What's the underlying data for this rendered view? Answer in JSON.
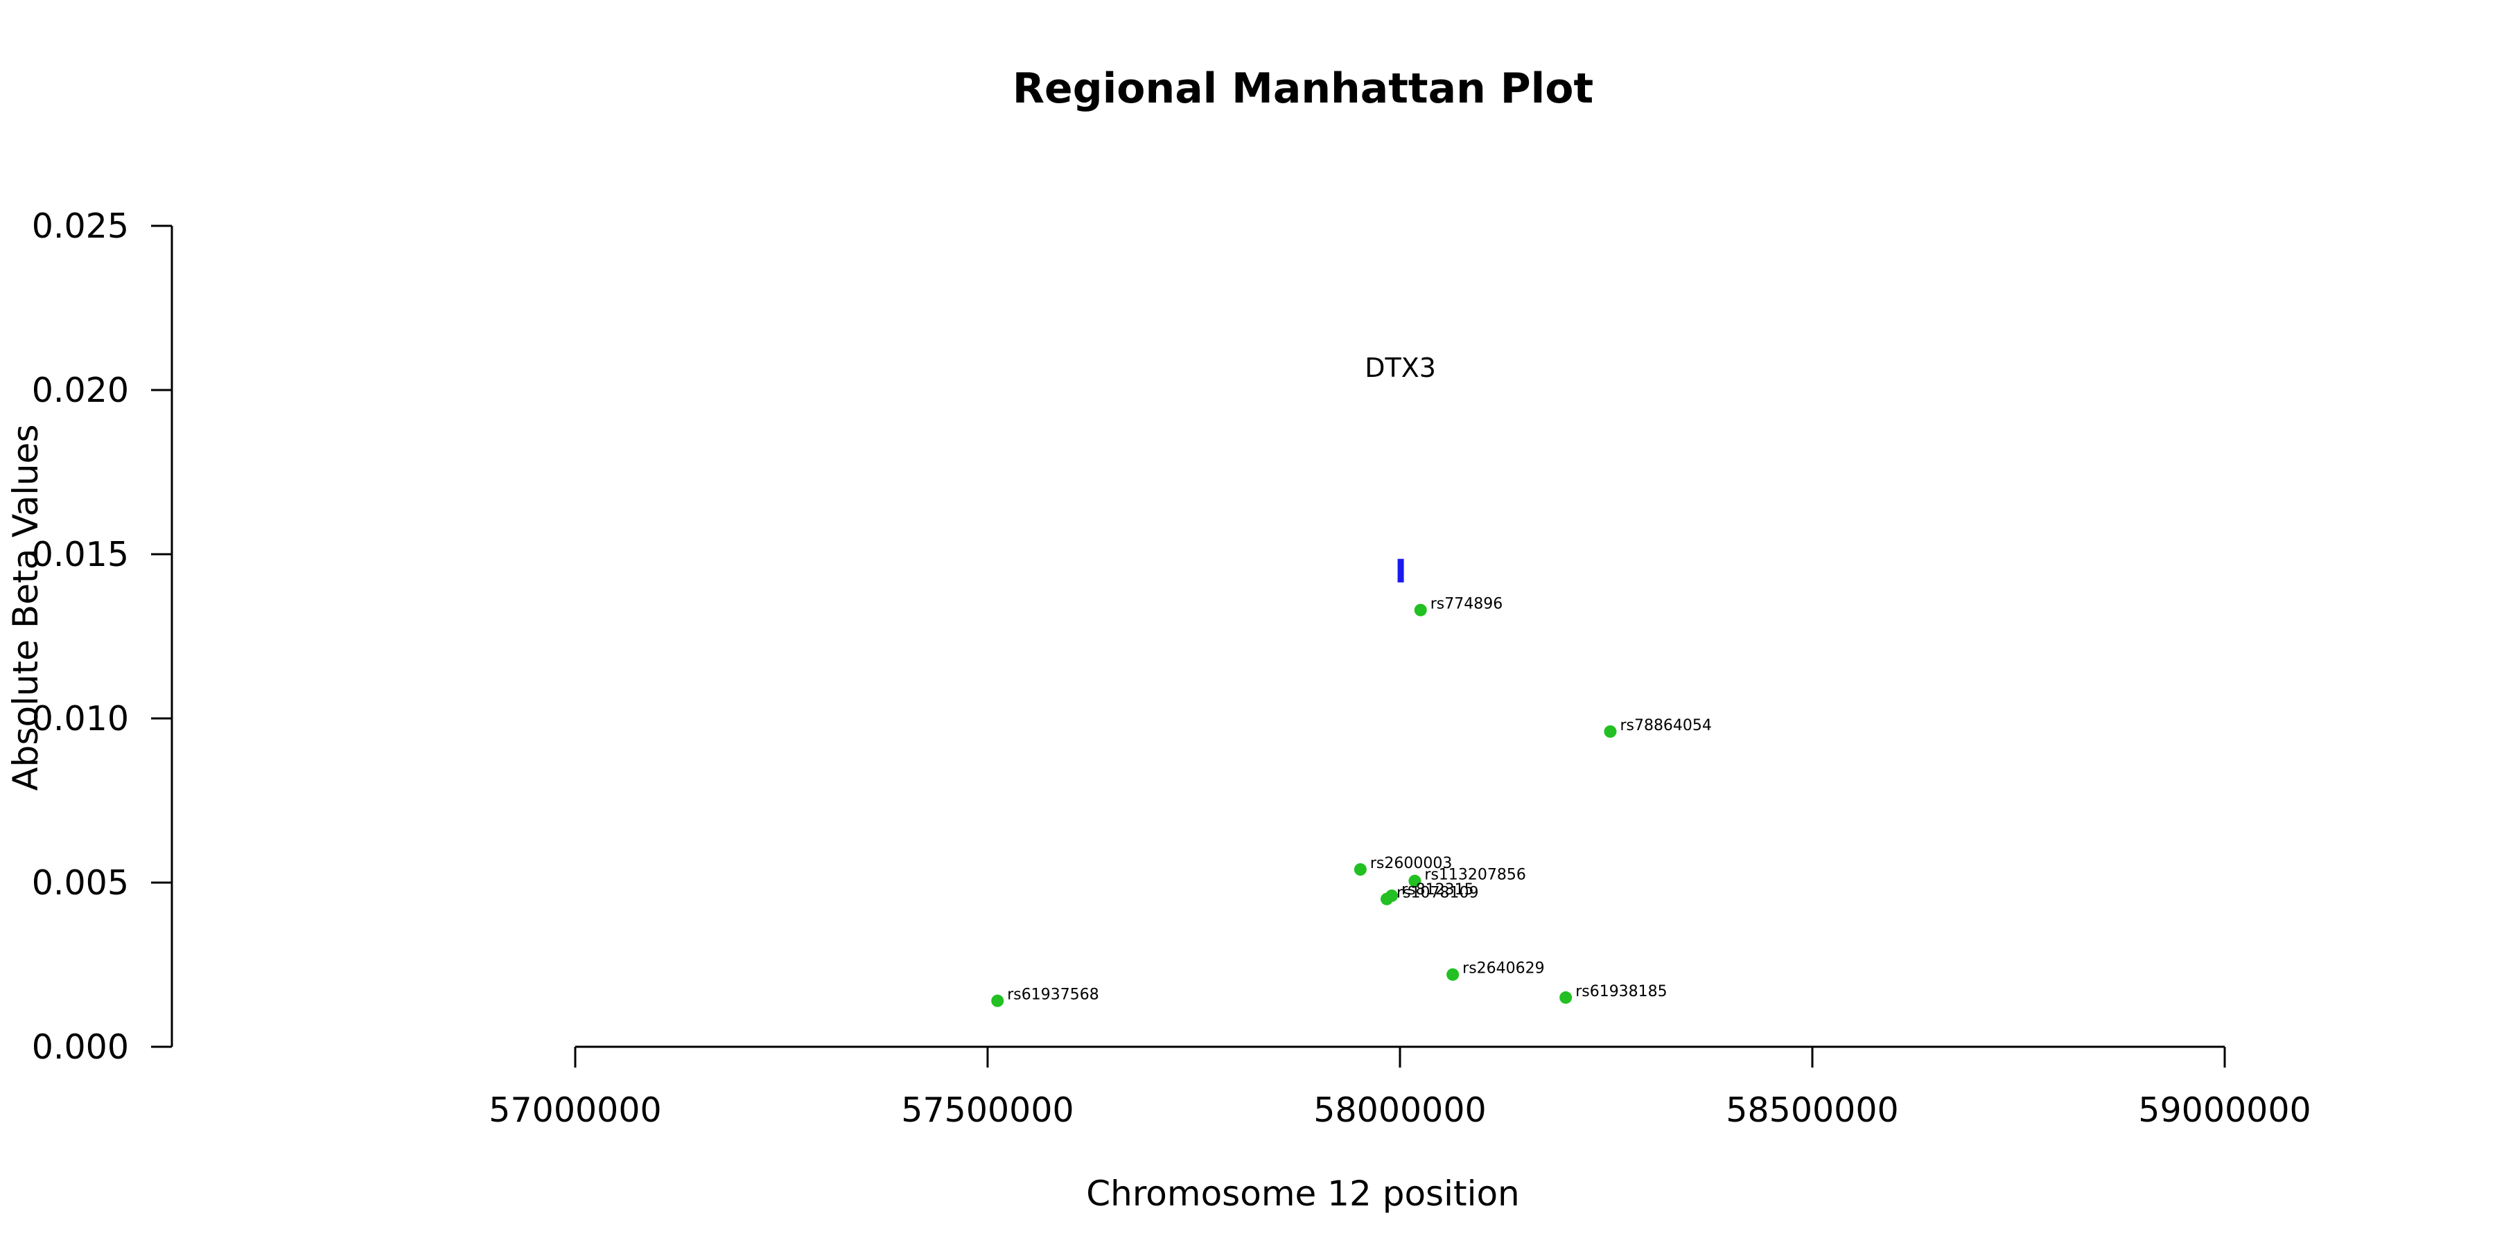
{
  "chart_data": {
    "type": "scatter",
    "title": "Regional Manhattan Plot",
    "xlabel": "Chromosome 12 position",
    "ylabel": "Absolute Beta Values",
    "xlim": [
      57000000,
      59000000
    ],
    "ylim": [
      0,
      0.025
    ],
    "x_ticks": [
      57000000,
      57500000,
      58000000,
      58500000,
      59000000
    ],
    "y_ticks": [
      "0.000",
      "0.005",
      "0.010",
      "0.015",
      "0.020",
      "0.025"
    ],
    "grid": false,
    "point_color": "#22c022",
    "gene_color": "#1a1aee",
    "gene": {
      "name": "DTX3",
      "start": 57998000,
      "end": 58003000,
      "y": 0.0145,
      "label_y": 0.0207
    },
    "points": [
      {
        "label": "rs774896",
        "x": 58025000,
        "y": 0.0133
      },
      {
        "label": "rs78864054",
        "x": 58255000,
        "y": 0.0096
      },
      {
        "label": "rs2600003",
        "x": 57952000,
        "y": 0.0054
      },
      {
        "label": "rs113207856",
        "x": 58018000,
        "y": 0.00505
      },
      {
        "label": "rs812315",
        "x": 57990000,
        "y": 0.0046
      },
      {
        "label": "rs1078109",
        "x": 57984000,
        "y": 0.0045
      },
      {
        "label": "rs2640629",
        "x": 58064000,
        "y": 0.0022
      },
      {
        "label": "rs61938185",
        "x": 58201000,
        "y": 0.0015
      },
      {
        "label": "rs61937568",
        "x": 57512000,
        "y": 0.0014
      }
    ]
  }
}
